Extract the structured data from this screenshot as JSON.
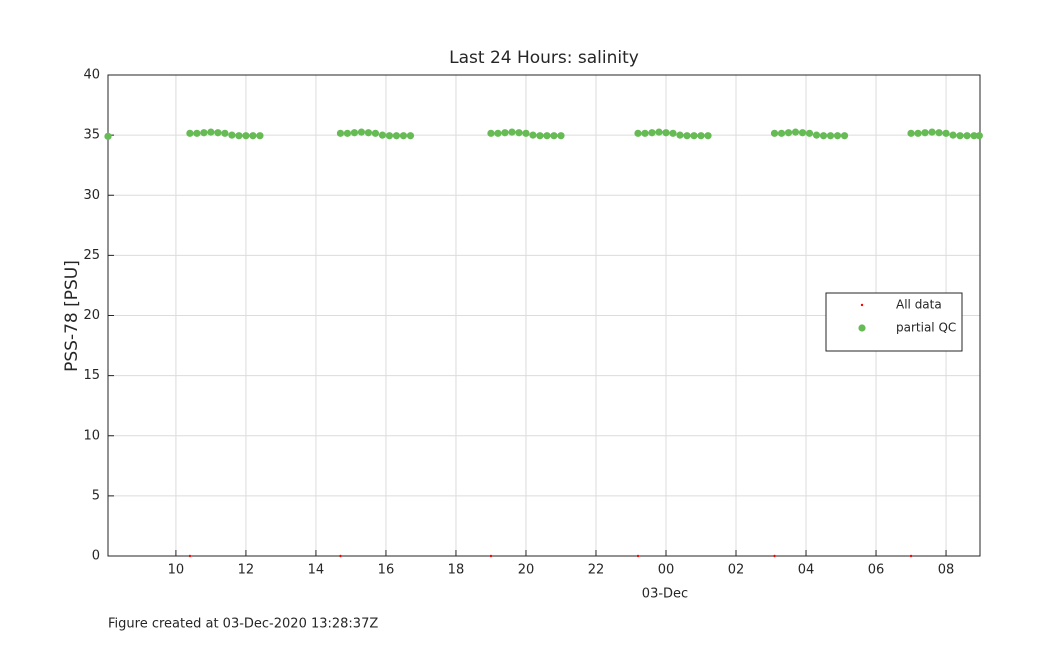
{
  "chart_data": {
    "type": "scatter",
    "title": "Last 24 Hours: salinity",
    "ylabel": "PSS-78 [PSU]",
    "xlabel": "03-Dec",
    "footnote": "Figure created at 03-Dec-2020 13:28:37Z",
    "xlim": [
      8.06,
      32.97
    ],
    "xticks": [
      10,
      12,
      14,
      16,
      18,
      20,
      22,
      {
        "value": 24,
        "label": "00"
      },
      {
        "value": 26,
        "label": "02"
      },
      {
        "value": 28,
        "label": "04"
      },
      {
        "value": 30,
        "label": "06"
      },
      {
        "value": 32,
        "label": "08"
      }
    ],
    "ylim": [
      0,
      40
    ],
    "yticks": [
      0,
      5,
      10,
      15,
      20,
      25,
      30,
      35,
      40
    ],
    "grid": true,
    "legend": "east",
    "series": [
      {
        "name": "All data",
        "color": "#ff0000",
        "x": [
          10.4,
          14.7,
          19.0,
          23.2,
          27.1,
          31.0
        ],
        "values": [
          0,
          0,
          0,
          0,
          0,
          0
        ]
      },
      {
        "name": "partial QC",
        "color": "#66bb55",
        "x": [
          8.06,
          10.4,
          10.6,
          10.8,
          11.0,
          11.2,
          11.4,
          11.6,
          11.8,
          12.0,
          12.2,
          12.4,
          14.7,
          14.9,
          15.1,
          15.3,
          15.5,
          15.7,
          15.9,
          16.1,
          16.3,
          16.5,
          16.7,
          19.0,
          19.2,
          19.4,
          19.6,
          19.8,
          20.0,
          20.2,
          20.4,
          20.6,
          20.8,
          21.0,
          23.2,
          23.4,
          23.6,
          23.8,
          24.0,
          24.2,
          24.4,
          24.6,
          24.8,
          25.0,
          25.2,
          27.1,
          27.3,
          27.5,
          27.7,
          27.9,
          28.1,
          28.3,
          28.5,
          28.7,
          28.9,
          29.1,
          31.0,
          31.2,
          31.4,
          31.6,
          31.8,
          32.0,
          32.2,
          32.4,
          32.6,
          32.8,
          32.95
        ],
        "values": [
          34.9,
          35.15,
          35.15,
          35.2,
          35.25,
          35.2,
          35.15,
          35.0,
          34.95,
          34.95,
          34.95,
          34.95,
          35.15,
          35.15,
          35.2,
          35.25,
          35.2,
          35.15,
          35.0,
          34.95,
          34.95,
          34.95,
          34.95,
          35.15,
          35.15,
          35.2,
          35.25,
          35.2,
          35.15,
          35.0,
          34.95,
          34.95,
          34.95,
          34.95,
          35.15,
          35.15,
          35.2,
          35.25,
          35.2,
          35.15,
          35.0,
          34.95,
          34.95,
          34.95,
          34.95,
          35.15,
          35.15,
          35.2,
          35.25,
          35.2,
          35.15,
          35.0,
          34.95,
          34.95,
          34.95,
          34.95,
          35.15,
          35.15,
          35.2,
          35.25,
          35.2,
          35.15,
          35.0,
          34.95,
          34.95,
          34.95,
          34.95
        ]
      }
    ]
  }
}
